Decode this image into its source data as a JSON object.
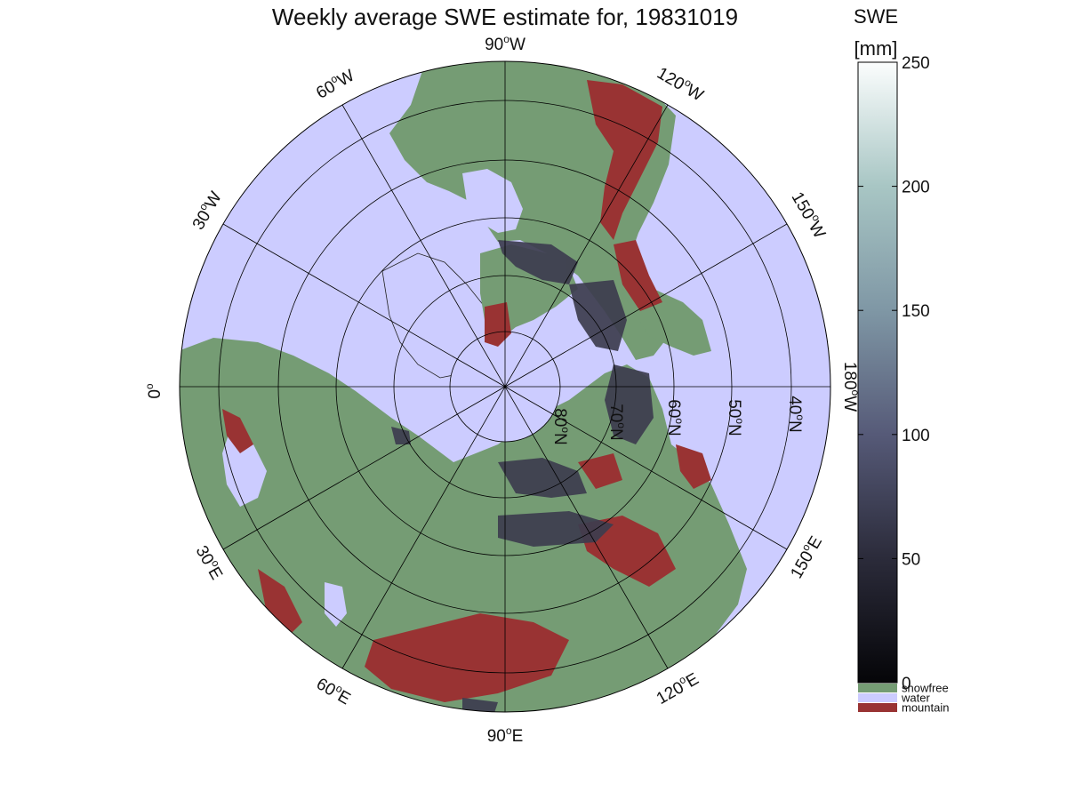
{
  "title": "Weekly average SWE estimate for, 19831019",
  "colorbar": {
    "title": "SWE",
    "unit": "[mm]",
    "ticks": [
      "0",
      "50",
      "100",
      "150",
      "200",
      "250"
    ],
    "tick_values": [
      0,
      50,
      100,
      150,
      200,
      250
    ],
    "min": 0,
    "max": 250,
    "categories": [
      {
        "label": "snowfree",
        "color": "#759c74"
      },
      {
        "label": "water",
        "color": "#ccccff"
      },
      {
        "label": "mountain",
        "color": "#993333"
      }
    ]
  },
  "map": {
    "projection": "north-polar-stereographic",
    "longitude_labels": [
      {
        "text": "90",
        "suffix": "W",
        "lon": -90
      },
      {
        "text": "120",
        "suffix": "W",
        "lon": -120
      },
      {
        "text": "150",
        "suffix": "W",
        "lon": -150
      },
      {
        "text": "180",
        "suffix": "W",
        "lon": 180
      },
      {
        "text": "150",
        "suffix": "E",
        "lon": 150
      },
      {
        "text": "120",
        "suffix": "E",
        "lon": 120
      },
      {
        "text": "90",
        "suffix": "E",
        "lon": 90
      },
      {
        "text": "60",
        "suffix": "E",
        "lon": 60
      },
      {
        "text": "30",
        "suffix": "E",
        "lon": 30
      },
      {
        "text": "0",
        "suffix": "",
        "lon": 0
      },
      {
        "text": "30",
        "suffix": "W",
        "lon": -30
      },
      {
        "text": "60",
        "suffix": "W",
        "lon": -60
      }
    ],
    "latitude_labels": [
      {
        "text": "80",
        "suffix": "N",
        "lat": 80
      },
      {
        "text": "70",
        "suffix": "N",
        "lat": 70
      },
      {
        "text": "60",
        "suffix": "N",
        "lat": 60
      },
      {
        "text": "50",
        "suffix": "N",
        "lat": 50
      },
      {
        "text": "40",
        "suffix": "N",
        "lat": 40
      }
    ],
    "colors": {
      "water": "#ccccff",
      "snowfree": "#759c74",
      "mountain": "#993333",
      "snow": "#3d3d4f"
    }
  }
}
